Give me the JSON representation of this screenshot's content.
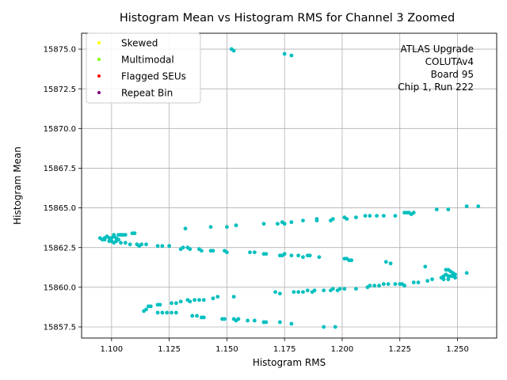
{
  "chart_data": {
    "type": "scatter",
    "title": "Histogram Mean vs Histogram RMS for Channel 3 Zoomed",
    "xlabel": "Histogram RMS",
    "ylabel": "Histogram Mean",
    "xlim": [
      1.087,
      1.267
    ],
    "ylim": [
      15856.8,
      15876.0
    ],
    "xticks": [
      1.1,
      1.125,
      1.15,
      1.175,
      1.2,
      1.225,
      1.25
    ],
    "xtick_labels": [
      "1.100",
      "1.125",
      "1.150",
      "1.175",
      "1.200",
      "1.225",
      "1.250"
    ],
    "yticks": [
      15857.5,
      15860.0,
      15862.5,
      15865.0,
      15867.5,
      15870.0,
      15872.5,
      15875.0
    ],
    "ytick_labels": [
      "15857.5",
      "15860.0",
      "15862.5",
      "15865.0",
      "15867.5",
      "15870.0",
      "15872.5",
      "15875.0"
    ],
    "grid": true,
    "legend_position": "top-left",
    "annotation": [
      "ATLAS Upgrade",
      "COLUTAv4",
      "Board 95",
      "Chip 1, Run 222"
    ],
    "legend": [
      {
        "name": "Skewed",
        "color": "#ffff00"
      },
      {
        "name": "Multimodal",
        "color": "#80ff00"
      },
      {
        "name": "Flagged SEUs",
        "color": "#ff0000"
      },
      {
        "name": "Repeat Bin",
        "color": "#800080"
      }
    ],
    "point_color": "#00bfbf",
    "points": [
      [
        1.152,
        15875.0
      ],
      [
        1.153,
        15874.9
      ],
      [
        1.175,
        15874.7
      ],
      [
        1.178,
        15874.6
      ],
      [
        1.254,
        15865.1
      ],
      [
        1.259,
        15865.1
      ],
      [
        1.241,
        15864.9
      ],
      [
        1.246,
        15864.9
      ],
      [
        1.227,
        15864.7
      ],
      [
        1.228,
        15864.7
      ],
      [
        1.229,
        15864.7
      ],
      [
        1.23,
        15864.6
      ],
      [
        1.231,
        15864.7
      ],
      [
        1.215,
        15864.5
      ],
      [
        1.218,
        15864.5
      ],
      [
        1.223,
        15864.5
      ],
      [
        1.21,
        15864.5
      ],
      [
        1.212,
        15864.5
      ],
      [
        1.201,
        15864.4
      ],
      [
        1.202,
        15864.3
      ],
      [
        1.206,
        15864.4
      ],
      [
        1.189,
        15864.3
      ],
      [
        1.189,
        15864.2
      ],
      [
        1.195,
        15864.2
      ],
      [
        1.196,
        15864.3
      ],
      [
        1.183,
        15864.2
      ],
      [
        1.174,
        15864.1
      ],
      [
        1.175,
        15864.0
      ],
      [
        1.178,
        15864.1
      ],
      [
        1.172,
        15864.0
      ],
      [
        1.166,
        15864.0
      ],
      [
        1.154,
        15863.9
      ],
      [
        1.15,
        15863.8
      ],
      [
        1.143,
        15863.8
      ],
      [
        1.132,
        15863.7
      ],
      [
        1.095,
        15863.1
      ],
      [
        1.096,
        15863.0
      ],
      [
        1.097,
        15863.1
      ],
      [
        1.098,
        15863.2
      ],
      [
        1.099,
        15863.1
      ],
      [
        1.097,
        15863.0
      ],
      [
        1.099,
        15862.9
      ],
      [
        1.1,
        15862.9
      ],
      [
        1.101,
        15862.8
      ],
      [
        1.102,
        15862.9
      ],
      [
        1.1,
        15863.1
      ],
      [
        1.101,
        15863.2
      ],
      [
        1.101,
        15863.3
      ],
      [
        1.103,
        15863.3
      ],
      [
        1.104,
        15863.3
      ],
      [
        1.105,
        15863.3
      ],
      [
        1.106,
        15863.3
      ],
      [
        1.102,
        15863.1
      ],
      [
        1.103,
        15863.0
      ],
      [
        1.104,
        15862.8
      ],
      [
        1.106,
        15862.8
      ],
      [
        1.108,
        15862.7
      ],
      [
        1.109,
        15863.4
      ],
      [
        1.11,
        15863.4
      ],
      [
        1.111,
        15862.7
      ],
      [
        1.112,
        15862.6
      ],
      [
        1.113,
        15862.7
      ],
      [
        1.115,
        15862.7
      ],
      [
        1.12,
        15862.6
      ],
      [
        1.122,
        15862.6
      ],
      [
        1.125,
        15862.6
      ],
      [
        1.13,
        15862.4
      ],
      [
        1.131,
        15862.5
      ],
      [
        1.133,
        15862.5
      ],
      [
        1.134,
        15862.4
      ],
      [
        1.138,
        15862.4
      ],
      [
        1.139,
        15862.3
      ],
      [
        1.143,
        15862.3
      ],
      [
        1.144,
        15862.3
      ],
      [
        1.149,
        15862.3
      ],
      [
        1.15,
        15862.2
      ],
      [
        1.16,
        15862.2
      ],
      [
        1.162,
        15862.2
      ],
      [
        1.166,
        15862.1
      ],
      [
        1.167,
        15862.1
      ],
      [
        1.173,
        15862.0
      ],
      [
        1.174,
        15862.0
      ],
      [
        1.175,
        15862.1
      ],
      [
        1.178,
        15862.0
      ],
      [
        1.181,
        15862.0
      ],
      [
        1.183,
        15861.9
      ],
      [
        1.185,
        15862.0
      ],
      [
        1.186,
        15862.0
      ],
      [
        1.19,
        15861.9
      ],
      [
        1.201,
        15861.8
      ],
      [
        1.202,
        15861.8
      ],
      [
        1.203,
        15861.7
      ],
      [
        1.204,
        15861.7
      ],
      [
        1.219,
        15861.6
      ],
      [
        1.221,
        15861.5
      ],
      [
        1.236,
        15861.3
      ],
      [
        1.254,
        15860.9
      ],
      [
        1.245,
        15861.1
      ],
      [
        1.246,
        15861.1
      ],
      [
        1.247,
        15861.0
      ],
      [
        1.248,
        15860.9
      ],
      [
        1.249,
        15860.8
      ],
      [
        1.244,
        15860.7
      ],
      [
        1.245,
        15860.8
      ],
      [
        1.246,
        15860.7
      ],
      [
        1.247,
        15860.7
      ],
      [
        1.248,
        15860.7
      ],
      [
        1.249,
        15860.6
      ],
      [
        1.243,
        15860.6
      ],
      [
        1.244,
        15860.5
      ],
      [
        1.246,
        15860.5
      ],
      [
        1.239,
        15860.5
      ],
      [
        1.237,
        15860.4
      ],
      [
        1.233,
        15860.3
      ],
      [
        1.231,
        15860.3
      ],
      [
        1.226,
        15860.2
      ],
      [
        1.227,
        15860.1
      ],
      [
        1.225,
        15860.2
      ],
      [
        1.223,
        15860.2
      ],
      [
        1.22,
        15860.2
      ],
      [
        1.218,
        15860.2
      ],
      [
        1.216,
        15860.1
      ],
      [
        1.214,
        15860.1
      ],
      [
        1.212,
        15860.1
      ],
      [
        1.211,
        15860.0
      ],
      [
        1.206,
        15859.9
      ],
      [
        1.201,
        15859.9
      ],
      [
        1.199,
        15859.9
      ],
      [
        1.198,
        15859.8
      ],
      [
        1.196,
        15859.9
      ],
      [
        1.195,
        15859.8
      ],
      [
        1.192,
        15859.8
      ],
      [
        1.188,
        15859.8
      ],
      [
        1.187,
        15859.7
      ],
      [
        1.185,
        15859.8
      ],
      [
        1.183,
        15859.7
      ],
      [
        1.181,
        15859.7
      ],
      [
        1.179,
        15859.7
      ],
      [
        1.173,
        15859.6
      ],
      [
        1.171,
        15859.7
      ],
      [
        1.153,
        15859.4
      ],
      [
        1.146,
        15859.4
      ],
      [
        1.144,
        15859.3
      ],
      [
        1.14,
        15859.2
      ],
      [
        1.138,
        15859.2
      ],
      [
        1.136,
        15859.2
      ],
      [
        1.134,
        15859.1
      ],
      [
        1.133,
        15859.2
      ],
      [
        1.13,
        15859.1
      ],
      [
        1.128,
        15859.0
      ],
      [
        1.126,
        15859.0
      ],
      [
        1.121,
        15858.9
      ],
      [
        1.12,
        15858.9
      ],
      [
        1.117,
        15858.8
      ],
      [
        1.116,
        15858.8
      ],
      [
        1.115,
        15858.6
      ],
      [
        1.114,
        15858.5
      ],
      [
        1.12,
        15858.4
      ],
      [
        1.122,
        15858.4
      ],
      [
        1.124,
        15858.4
      ],
      [
        1.126,
        15858.4
      ],
      [
        1.128,
        15858.4
      ],
      [
        1.135,
        15858.2
      ],
      [
        1.137,
        15858.2
      ],
      [
        1.139,
        15858.1
      ],
      [
        1.14,
        15858.1
      ],
      [
        1.148,
        15858.0
      ],
      [
        1.149,
        15858.0
      ],
      [
        1.153,
        15858.0
      ],
      [
        1.154,
        15857.9
      ],
      [
        1.155,
        15858.0
      ],
      [
        1.159,
        15857.9
      ],
      [
        1.162,
        15857.9
      ],
      [
        1.166,
        15857.8
      ],
      [
        1.167,
        15857.8
      ],
      [
        1.173,
        15857.8
      ],
      [
        1.178,
        15857.7
      ],
      [
        1.192,
        15857.5
      ],
      [
        1.197,
        15857.5
      ]
    ]
  }
}
